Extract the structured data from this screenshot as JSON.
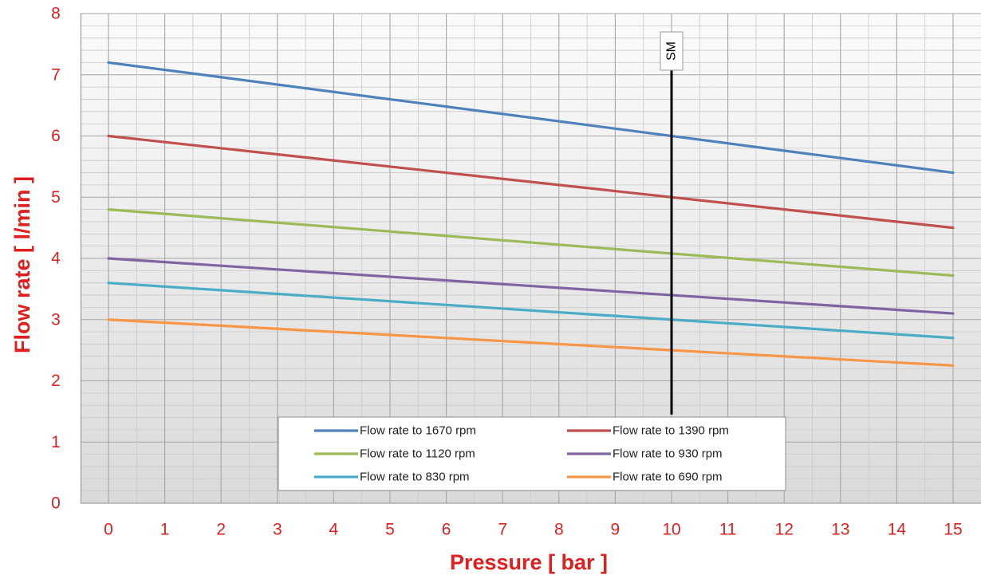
{
  "chart_data": {
    "type": "line",
    "title": "",
    "xlabel": "Pressure [ bar ]",
    "ylabel": "Flow rate [ l/min ]",
    "xlim": [
      0,
      15
    ],
    "ylim": [
      0,
      8
    ],
    "x_ticks": [
      "0",
      "1",
      "2",
      "3",
      "4",
      "5",
      "6",
      "7",
      "8",
      "9",
      "10",
      "11",
      "12",
      "13",
      "14",
      "15"
    ],
    "y_ticks": [
      "0",
      "1",
      "2",
      "3",
      "4",
      "5",
      "6",
      "7",
      "8"
    ],
    "x_minor_per_major": 2,
    "y_minor_per_major": 5,
    "grid": true,
    "legend_position": "lower-center",
    "series": [
      {
        "name": "Flow rate to 1670 rpm",
        "color": "#4F81BD",
        "x": [
          0,
          15
        ],
        "y": [
          7.2,
          5.4
        ]
      },
      {
        "name": "Flow rate to 1390 rpm",
        "color": "#C0504D",
        "x": [
          0,
          15
        ],
        "y": [
          6.0,
          4.5
        ]
      },
      {
        "name": "Flow rate to 1120 rpm",
        "color": "#9BBB59",
        "x": [
          0,
          15
        ],
        "y": [
          4.8,
          3.72
        ]
      },
      {
        "name": "Flow rate to 930 rpm",
        "color": "#8064A2",
        "x": [
          0,
          15
        ],
        "y": [
          4.0,
          3.1
        ]
      },
      {
        "name": "Flow rate to 830 rpm",
        "color": "#4BACC6",
        "x": [
          0,
          15
        ],
        "y": [
          3.6,
          2.7
        ]
      },
      {
        "name": "Flow rate to 690 rpm",
        "color": "#F79646",
        "x": [
          0,
          15
        ],
        "y": [
          3.0,
          2.25
        ]
      }
    ],
    "annotations": [
      {
        "type": "vertical-line",
        "x": 10,
        "y_from": 1.45,
        "y_to": 7.1,
        "label": "SM",
        "color": "#000000"
      }
    ],
    "colors": {
      "tick_labels": "#E02020",
      "axis_titles": "#E02020",
      "plot_background_top": "#FBFBFB",
      "plot_background_bottom": "#DADADA",
      "major_grid": "#A6A6A6",
      "minor_grid": "#C8C8C8"
    }
  }
}
